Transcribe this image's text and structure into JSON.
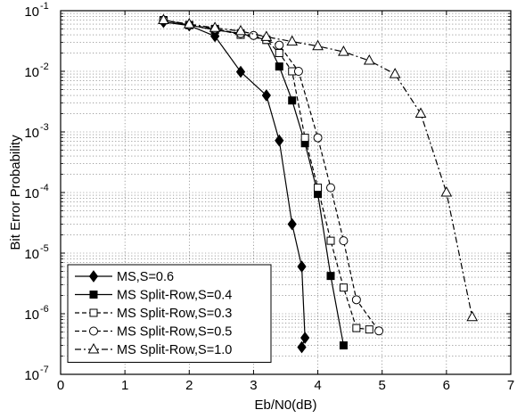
{
  "chart_data": {
    "type": "line",
    "title": "",
    "xlabel": "Eb/N0(dB)",
    "ylabel": "Bit Error Probability",
    "xlim": [
      0,
      7
    ],
    "ylim": [
      1e-07,
      0.1
    ],
    "yscale": "log",
    "grid": true,
    "legend_position": "bottom-left",
    "x_ticks": [
      0,
      1,
      2,
      3,
      4,
      5,
      6,
      7
    ],
    "x_tick_labels": [
      "0",
      "1",
      "2",
      "3",
      "4",
      "5",
      "6",
      "7"
    ],
    "y_ticks": [
      1e-07,
      1e-06,
      1e-05,
      0.0001,
      0.001,
      0.01,
      0.1
    ],
    "y_tick_labels": [
      {
        "base": "10",
        "exp": "-7"
      },
      {
        "base": "10",
        "exp": "-6"
      },
      {
        "base": "10",
        "exp": "-5"
      },
      {
        "base": "10",
        "exp": "-4"
      },
      {
        "base": "10",
        "exp": "-3"
      },
      {
        "base": "10",
        "exp": "-2"
      },
      {
        "base": "10",
        "exp": "-1"
      }
    ],
    "series": [
      {
        "name": "MS,S=0.6",
        "marker": "diamond",
        "line": "solid",
        "color": "#000000",
        "x": [
          1.6,
          2.0,
          2.4,
          2.8,
          3.2,
          3.4,
          3.6,
          3.75,
          3.8,
          3.75
        ],
        "y": [
          0.065,
          0.057,
          0.038,
          0.0098,
          0.004,
          0.00072,
          3e-05,
          6e-06,
          4e-07,
          2.8e-07
        ]
      },
      {
        "name": "MS Split-Row,S=0.4",
        "marker": "square",
        "line": "solid",
        "color": "#000000",
        "x": [
          1.6,
          2.0,
          2.4,
          2.8,
          3.2,
          3.4,
          3.6,
          3.8,
          4.0,
          4.2,
          4.4
        ],
        "y": [
          0.07,
          0.058,
          0.048,
          0.042,
          0.033,
          0.012,
          0.0033,
          0.00065,
          9.5e-05,
          4.2e-06,
          3e-07
        ]
      },
      {
        "name": "MS Split-Row,S=0.3",
        "marker": "square-open",
        "line": "dashed",
        "color": "#000000",
        "x": [
          1.6,
          2.0,
          2.4,
          2.8,
          3.2,
          3.4,
          3.6,
          3.8,
          4.0,
          4.2,
          4.4,
          4.6,
          4.8
        ],
        "y": [
          0.07,
          0.058,
          0.05,
          0.04,
          0.033,
          0.02,
          0.01,
          0.0008,
          0.00012,
          1.6e-05,
          2.7e-06,
          5.8e-07,
          5.5e-07
        ]
      },
      {
        "name": "MS Split-Row,S=0.5",
        "marker": "circle",
        "line": "dashed",
        "color": "#000000",
        "x": [
          1.6,
          2.0,
          2.4,
          2.8,
          3.0,
          3.4,
          3.7,
          4.0,
          4.2,
          4.4,
          4.6,
          4.95
        ],
        "y": [
          0.07,
          0.058,
          0.05,
          0.042,
          0.039,
          0.027,
          0.01,
          0.0008,
          0.00012,
          1.6e-05,
          1.7e-06,
          5.2e-07
        ]
      },
      {
        "name": "MS Split-Row,S=1.0",
        "marker": "triangle",
        "line": "dashdot",
        "color": "#000000",
        "x": [
          1.6,
          2.0,
          2.4,
          2.8,
          3.2,
          3.6,
          4.0,
          4.4,
          4.8,
          5.2,
          5.6,
          6.0,
          6.4
        ],
        "y": [
          0.07,
          0.06,
          0.052,
          0.046,
          0.037,
          0.031,
          0.026,
          0.021,
          0.015,
          0.009,
          0.002,
          0.0001,
          8.8e-07
        ]
      }
    ]
  }
}
